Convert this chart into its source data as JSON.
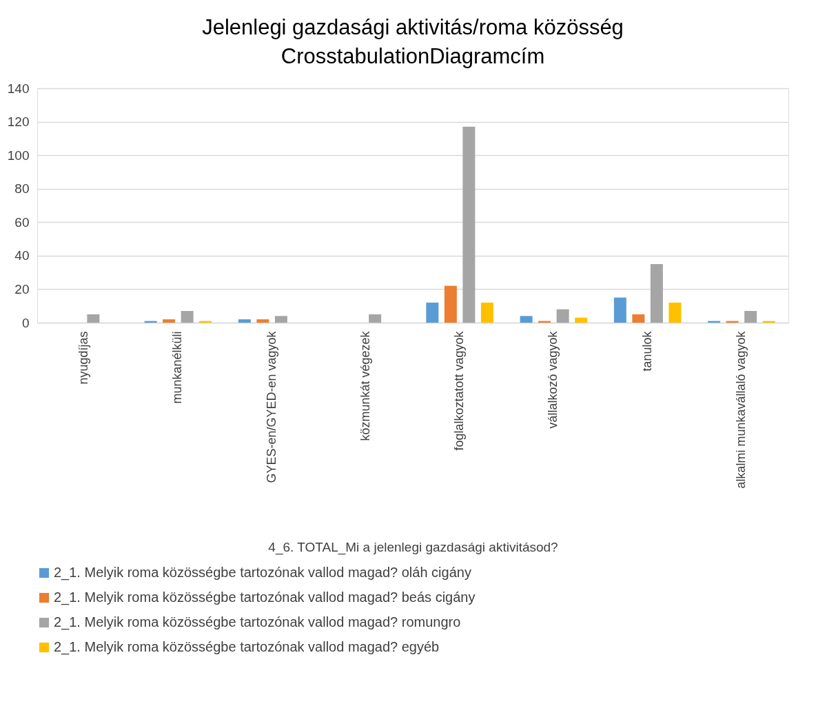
{
  "chart_data": {
    "type": "bar",
    "title": "Jelenlegi gazdasági aktivitás/roma közösség CrosstabulationDiagramcím",
    "xlabel": "4_6. TOTAL_Mi a jelenlegi gazdasági aktivitásod?",
    "categories": [
      "nyugdíjas",
      "munkanélküli",
      "GYES-en/GYED-en vagyok",
      "közmunkát végezek",
      "foglalkoztatott vagyok",
      "vállalkozó vagyok",
      "tanulok",
      "alkalmi munkavállaló vagyok"
    ],
    "series": [
      {
        "name": "2_1. Melyik roma közösségbe tartozónak vallod magad? oláh cigány",
        "color": "#5b9bd5",
        "values": [
          0,
          1,
          2,
          0,
          12,
          4,
          15,
          1
        ]
      },
      {
        "name": "2_1. Melyik roma közösségbe tartozónak vallod magad? beás cigány",
        "color": "#ed7d31",
        "values": [
          0,
          2,
          2,
          0,
          22,
          1,
          5,
          1
        ]
      },
      {
        "name": "2_1. Melyik roma közösségbe tartozónak vallod magad? romungro",
        "color": "#a5a5a5",
        "values": [
          5,
          7,
          4,
          5,
          117,
          8,
          35,
          7
        ]
      },
      {
        "name": "2_1. Melyik roma közösségbe tartozónak vallod magad? egyéb",
        "color": "#ffc000",
        "values": [
          0,
          1,
          0,
          0,
          12,
          3,
          12,
          1
        ]
      }
    ],
    "ylim": [
      0,
      140
    ],
    "yticks": [
      0,
      20,
      40,
      60,
      80,
      100,
      120,
      140
    ],
    "grid": "y",
    "legend": "bottom"
  }
}
